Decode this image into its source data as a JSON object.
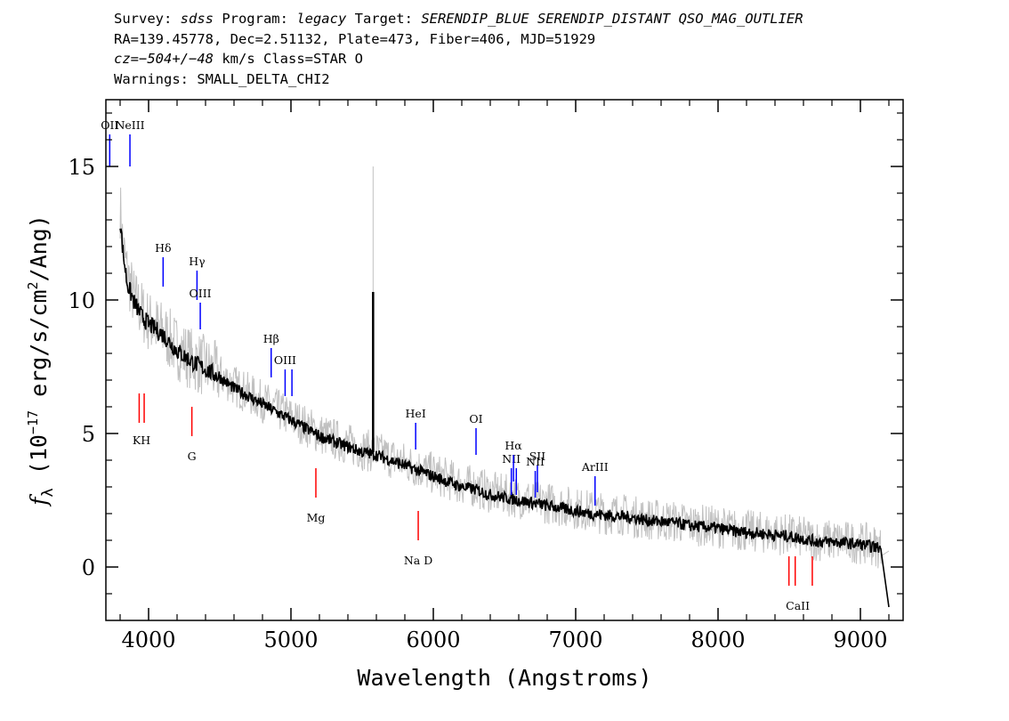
{
  "header": {
    "line1": {
      "survey_key": "Survey: ",
      "survey": "sdss",
      "program_key": " Program: ",
      "program": "legacy",
      "target_key": " Target: ",
      "target": "SERENDIP_BLUE SERENDIP_DISTANT QSO_MAG_OUTLIER"
    },
    "line2": "RA=139.45778, Dec=2.51132, Plate=473, Fiber=406, MJD=51929",
    "line3": {
      "cz_key": "cz",
      "cz_eq": "=",
      "cz_value": "−504+/−48",
      "cz_rest": " km/s Class=STAR O"
    },
    "line4": "Warnings: SMALL_DELTA_CHI2"
  },
  "chart_data": {
    "type": "line",
    "xlabel": "Wavelength (Angstroms)",
    "ylabel": "f",
    "ylabel_sub": "λ",
    "ylabel_units_pre": " (10",
    "ylabel_exp1": "−17",
    "ylabel_units_mid": " erg/s/cm",
    "ylabel_exp2": "2",
    "ylabel_units_post": "/Ang)",
    "xlim": [
      3700,
      9300
    ],
    "ylim": [
      -2.0,
      17.5
    ],
    "xticks": [
      4000,
      5000,
      6000,
      7000,
      8000,
      9000
    ],
    "xtick_labels": [
      "4000",
      "5000",
      "6000",
      "7000",
      "8000",
      "9000"
    ],
    "yticks": [
      0,
      5,
      10,
      15
    ],
    "ytick_labels": [
      "0",
      "5",
      "10",
      "15"
    ],
    "grid": false,
    "series": [
      {
        "role": "raw flux",
        "color": "#c0c0c0",
        "x": [
          3800,
          3820,
          3850,
          3900,
          3950,
          4000,
          4100,
          4200,
          4300,
          4400,
          4500,
          4600,
          4700,
          4800,
          4900,
          5000,
          5100,
          5200,
          5300,
          5400,
          5500,
          5577,
          5600,
          5700,
          5800,
          5900,
          6000,
          6100,
          6200,
          6300,
          6400,
          6500,
          6600,
          6700,
          6800,
          6900,
          7000,
          7100,
          7200,
          7300,
          7400,
          7500,
          7600,
          7700,
          7800,
          7900,
          8000,
          8100,
          8200,
          8300,
          8400,
          8500,
          8600,
          8700,
          8800,
          8900,
          9000,
          9100,
          9150,
          9200
        ],
        "y": [
          13.5,
          12.0,
          11.0,
          10.0,
          9.6,
          9.2,
          8.8,
          8.2,
          7.8,
          7.5,
          7.2,
          6.8,
          6.5,
          6.2,
          5.9,
          5.6,
          5.3,
          5.0,
          4.8,
          4.6,
          4.4,
          10.3,
          4.3,
          4.1,
          3.9,
          3.7,
          3.5,
          3.3,
          3.1,
          3.0,
          2.8,
          2.7,
          2.6,
          2.5,
          2.4,
          2.3,
          2.2,
          2.1,
          2.0,
          2.0,
          1.9,
          1.8,
          1.75,
          1.7,
          1.6,
          1.55,
          1.5,
          1.4,
          1.35,
          1.3,
          1.25,
          1.2,
          1.1,
          1.0,
          1.0,
          0.95,
          0.9,
          0.8,
          0.7,
          0.6
        ]
      },
      {
        "role": "smoothed flux",
        "color": "#000000",
        "x": [
          3800,
          3820,
          3850,
          3900,
          3950,
          4000,
          4100,
          4200,
          4300,
          4400,
          4500,
          4600,
          4700,
          4800,
          4900,
          5000,
          5100,
          5200,
          5300,
          5400,
          5500,
          5577,
          5600,
          5700,
          5800,
          5900,
          6000,
          6100,
          6200,
          6300,
          6400,
          6500,
          6600,
          6700,
          6800,
          6900,
          7000,
          7100,
          7200,
          7300,
          7400,
          7500,
          7600,
          7700,
          7800,
          7900,
          8000,
          8100,
          8200,
          8300,
          8400,
          8500,
          8600,
          8700,
          8800,
          8900,
          9000,
          9100,
          9150,
          9200
        ],
        "y": [
          13.0,
          11.8,
          10.6,
          9.9,
          9.4,
          9.1,
          8.7,
          8.1,
          7.7,
          7.4,
          7.1,
          6.7,
          6.4,
          6.1,
          5.8,
          5.5,
          5.2,
          4.9,
          4.7,
          4.5,
          4.3,
          10.3,
          4.2,
          4.0,
          3.8,
          3.6,
          3.4,
          3.2,
          3.0,
          2.9,
          2.7,
          2.6,
          2.5,
          2.4,
          2.3,
          2.2,
          2.1,
          2.0,
          1.95,
          1.9,
          1.85,
          1.75,
          1.7,
          1.65,
          1.55,
          1.5,
          1.45,
          1.35,
          1.3,
          1.25,
          1.2,
          1.15,
          1.05,
          0.95,
          0.95,
          0.9,
          0.85,
          0.75,
          0.7,
          -1.5
        ]
      }
    ],
    "emission_lines": [
      {
        "label": "OII",
        "wavelength": 3727,
        "y_top": 16.2,
        "y_bottom": 15.0,
        "label_y": 16.2
      },
      {
        "label": "NeIII",
        "wavelength": 3869,
        "y_top": 16.2,
        "y_bottom": 15.0,
        "label_y": 16.2
      },
      {
        "label": "Hδ",
        "wavelength": 4102,
        "y_top": 11.6,
        "y_bottom": 10.5,
        "label_y": 11.6
      },
      {
        "label": "Hγ",
        "wavelength": 4340,
        "y_top": 11.1,
        "y_bottom": 10.0,
        "label_y": 11.1
      },
      {
        "label": "OIII",
        "wavelength": 4363,
        "y_top": 9.9,
        "y_bottom": 8.9,
        "label_y": 9.9
      },
      {
        "label": "Hβ",
        "wavelength": 4861,
        "y_top": 8.2,
        "y_bottom": 7.1,
        "label_y": 8.2
      },
      {
        "label": "OIII",
        "wavelength": 4959,
        "y_top": 7.4,
        "y_bottom": 6.4,
        "label_y": 7.4
      },
      {
        "label": "",
        "wavelength": 5007,
        "y_top": 7.4,
        "y_bottom": 6.4,
        "label_y": 7.4
      },
      {
        "label": "HeI",
        "wavelength": 5876,
        "y_top": 5.4,
        "y_bottom": 4.4,
        "label_y": 5.4
      },
      {
        "label": "OI",
        "wavelength": 6300,
        "y_top": 5.2,
        "y_bottom": 4.2,
        "label_y": 5.2
      },
      {
        "label": "NII",
        "wavelength": 6548,
        "y_top": 3.7,
        "y_bottom": 2.7,
        "label_y": 3.7
      },
      {
        "label": "Hα",
        "wavelength": 6563,
        "y_top": 4.2,
        "y_bottom": 3.2,
        "label_y": 4.2
      },
      {
        "label": "",
        "wavelength": 6583,
        "y_top": 3.7,
        "y_bottom": 2.7,
        "label_y": 3.7
      },
      {
        "label": "NII",
        "wavelength": 6716,
        "y_top": 3.6,
        "y_bottom": 2.6,
        "label_y": 3.6
      },
      {
        "label": "SII",
        "wavelength": 6731,
        "y_top": 3.8,
        "y_bottom": 2.8,
        "label_y": 3.8
      },
      {
        "label": "ArIII",
        "wavelength": 7136,
        "y_top": 3.4,
        "y_bottom": 2.3,
        "label_y": 3.4
      }
    ],
    "absorption_lines": [
      {
        "label": "",
        "wavelength": 3934,
        "y_top": 6.5,
        "y_bottom": 5.4
      },
      {
        "label": "",
        "wavelength": 3969,
        "y_top": 6.5,
        "y_bottom": 5.4
      },
      {
        "label": "KH",
        "wavelength": 3950,
        "label_y": 5.0
      },
      {
        "label": "",
        "wavelength": 4304,
        "y_top": 6.0,
        "y_bottom": 4.9
      },
      {
        "label": "G",
        "wavelength": 4304,
        "label_y": 4.4
      },
      {
        "label": "",
        "wavelength": 5175,
        "y_top": 3.7,
        "y_bottom": 2.6
      },
      {
        "label": "Mg",
        "wavelength": 5175,
        "label_y": 2.1
      },
      {
        "label": "",
        "wavelength": 5894,
        "y_top": 2.1,
        "y_bottom": 1.0
      },
      {
        "label": "Na D",
        "wavelength": 5894,
        "label_y": 0.5
      },
      {
        "label": "",
        "wavelength": 8498,
        "y_top": 0.4,
        "y_bottom": -0.7
      },
      {
        "label": "",
        "wavelength": 8542,
        "y_top": 0.4,
        "y_bottom": -0.7
      },
      {
        "label": "",
        "wavelength": 8662,
        "y_top": 0.4,
        "y_bottom": -0.7
      },
      {
        "label": "CaII",
        "wavelength": 8560,
        "label_y": -1.2
      }
    ],
    "emission_color": "#0000ff",
    "absorption_color": "#ff0000",
    "series_label_color": "#000000"
  }
}
